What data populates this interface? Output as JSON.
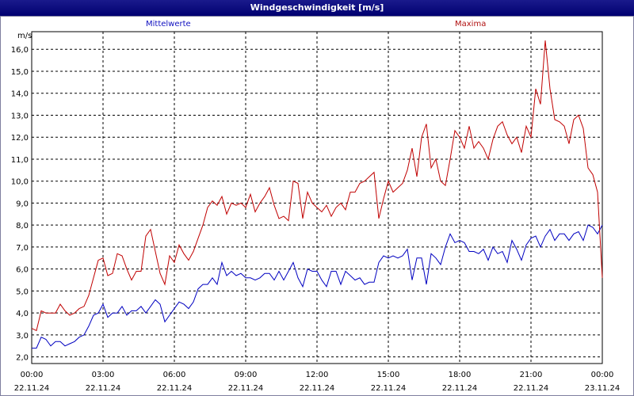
{
  "window": {
    "title": "Windgeschwindigkeit [m/s]"
  },
  "chart_data": {
    "type": "line",
    "title": "Windgeschwindigkeit [m/s]",
    "ylabel": "m/s",
    "ylim": [
      1.7,
      16.8
    ],
    "y_ticks": [
      "2,0",
      "3,0",
      "4,0",
      "5,0",
      "6,0",
      "7,0",
      "8,0",
      "9,0",
      "10,0",
      "11,0",
      "12,0",
      "13,0",
      "14,0",
      "15,0",
      "16,0"
    ],
    "xlim_hours": [
      0,
      24
    ],
    "x_ticks": [
      {
        "time": "00:00",
        "date": "22.11.24",
        "hour": 0
      },
      {
        "time": "03:00",
        "date": "22.11.24",
        "hour": 3
      },
      {
        "time": "06:00",
        "date": "22.11.24",
        "hour": 6
      },
      {
        "time": "09:00",
        "date": "22.11.24",
        "hour": 9
      },
      {
        "time": "12:00",
        "date": "22.11.24",
        "hour": 12
      },
      {
        "time": "15:00",
        "date": "22.11.24",
        "hour": 15
      },
      {
        "time": "18:00",
        "date": "22.11.24",
        "hour": 18
      },
      {
        "time": "21:00",
        "date": "22.11.24",
        "hour": 21
      },
      {
        "time": "00:00",
        "date": "23.11.24",
        "hour": 24
      }
    ],
    "grid": true,
    "series": [
      {
        "name": "Mittelwerte",
        "color": "#0000c0",
        "points": [
          [
            0,
            2.4
          ],
          [
            0.2,
            2.4
          ],
          [
            0.4,
            2.9
          ],
          [
            0.6,
            2.8
          ],
          [
            0.8,
            2.5
          ],
          [
            1.0,
            2.7
          ],
          [
            1.2,
            2.7
          ],
          [
            1.4,
            2.5
          ],
          [
            1.6,
            2.6
          ],
          [
            1.8,
            2.7
          ],
          [
            2.0,
            2.9
          ],
          [
            2.2,
            3.0
          ],
          [
            2.4,
            3.4
          ],
          [
            2.6,
            3.9
          ],
          [
            2.8,
            4.0
          ],
          [
            3.0,
            4.4
          ],
          [
            3.2,
            3.8
          ],
          [
            3.4,
            4.0
          ],
          [
            3.6,
            4.0
          ],
          [
            3.8,
            4.3
          ],
          [
            4.0,
            3.9
          ],
          [
            4.2,
            4.1
          ],
          [
            4.4,
            4.1
          ],
          [
            4.6,
            4.3
          ],
          [
            4.8,
            4.0
          ],
          [
            5.0,
            4.3
          ],
          [
            5.2,
            4.6
          ],
          [
            5.4,
            4.4
          ],
          [
            5.6,
            3.6
          ],
          [
            5.8,
            3.9
          ],
          [
            6.0,
            4.2
          ],
          [
            6.2,
            4.5
          ],
          [
            6.4,
            4.4
          ],
          [
            6.6,
            4.2
          ],
          [
            6.8,
            4.5
          ],
          [
            7.0,
            5.1
          ],
          [
            7.2,
            5.3
          ],
          [
            7.4,
            5.3
          ],
          [
            7.6,
            5.6
          ],
          [
            7.8,
            5.3
          ],
          [
            8.0,
            6.3
          ],
          [
            8.2,
            5.7
          ],
          [
            8.4,
            5.9
          ],
          [
            8.6,
            5.7
          ],
          [
            8.8,
            5.8
          ],
          [
            9.0,
            5.6
          ],
          [
            9.2,
            5.6
          ],
          [
            9.4,
            5.5
          ],
          [
            9.6,
            5.6
          ],
          [
            9.8,
            5.8
          ],
          [
            10.0,
            5.8
          ],
          [
            10.2,
            5.5
          ],
          [
            10.4,
            5.9
          ],
          [
            10.6,
            5.5
          ],
          [
            10.8,
            5.9
          ],
          [
            11.0,
            6.3
          ],
          [
            11.2,
            5.6
          ],
          [
            11.4,
            5.2
          ],
          [
            11.6,
            6.0
          ],
          [
            11.8,
            5.9
          ],
          [
            12.0,
            5.9
          ],
          [
            12.2,
            5.5
          ],
          [
            12.4,
            5.2
          ],
          [
            12.6,
            5.9
          ],
          [
            12.8,
            5.9
          ],
          [
            13.0,
            5.3
          ],
          [
            13.2,
            5.9
          ],
          [
            13.4,
            5.7
          ],
          [
            13.6,
            5.5
          ],
          [
            13.8,
            5.6
          ],
          [
            14.0,
            5.3
          ],
          [
            14.2,
            5.4
          ],
          [
            14.4,
            5.4
          ],
          [
            14.6,
            6.3
          ],
          [
            14.8,
            6.6
          ],
          [
            15.0,
            6.5
          ],
          [
            15.2,
            6.6
          ],
          [
            15.4,
            6.5
          ],
          [
            15.6,
            6.6
          ],
          [
            15.8,
            6.9
          ],
          [
            16.0,
            5.5
          ],
          [
            16.2,
            6.5
          ],
          [
            16.4,
            6.5
          ],
          [
            16.6,
            5.3
          ],
          [
            16.8,
            6.7
          ],
          [
            17.0,
            6.5
          ],
          [
            17.2,
            6.2
          ],
          [
            17.4,
            7.0
          ],
          [
            17.6,
            7.6
          ],
          [
            17.8,
            7.2
          ],
          [
            18.0,
            7.3
          ],
          [
            18.2,
            7.2
          ],
          [
            18.4,
            6.8
          ],
          [
            18.6,
            6.8
          ],
          [
            18.8,
            6.7
          ],
          [
            19.0,
            6.9
          ],
          [
            19.2,
            6.4
          ],
          [
            19.4,
            7.0
          ],
          [
            19.6,
            6.7
          ],
          [
            19.8,
            6.8
          ],
          [
            20.0,
            6.3
          ],
          [
            20.2,
            7.3
          ],
          [
            20.4,
            6.9
          ],
          [
            20.6,
            6.4
          ],
          [
            20.8,
            7.1
          ],
          [
            21.0,
            7.4
          ],
          [
            21.2,
            7.5
          ],
          [
            21.4,
            7.0
          ],
          [
            21.6,
            7.5
          ],
          [
            21.8,
            7.8
          ],
          [
            22.0,
            7.3
          ],
          [
            22.2,
            7.6
          ],
          [
            22.4,
            7.6
          ],
          [
            22.6,
            7.3
          ],
          [
            22.8,
            7.6
          ],
          [
            23.0,
            7.7
          ],
          [
            23.2,
            7.3
          ],
          [
            23.4,
            8.0
          ],
          [
            23.6,
            7.9
          ],
          [
            23.8,
            7.6
          ],
          [
            24.0,
            8.0
          ]
        ]
      },
      {
        "name": "Maxima",
        "color": "#c00000",
        "points": [
          [
            0,
            3.3
          ],
          [
            0.2,
            3.2
          ],
          [
            0.4,
            4.1
          ],
          [
            0.6,
            4.0
          ],
          [
            0.8,
            4.0
          ],
          [
            1.0,
            4.0
          ],
          [
            1.2,
            4.4
          ],
          [
            1.4,
            4.1
          ],
          [
            1.6,
            3.9
          ],
          [
            1.8,
            4.0
          ],
          [
            2.0,
            4.2
          ],
          [
            2.2,
            4.3
          ],
          [
            2.4,
            4.8
          ],
          [
            2.6,
            5.6
          ],
          [
            2.8,
            6.4
          ],
          [
            3.0,
            6.5
          ],
          [
            3.2,
            5.7
          ],
          [
            3.4,
            5.8
          ],
          [
            3.6,
            6.7
          ],
          [
            3.8,
            6.6
          ],
          [
            4.0,
            6.0
          ],
          [
            4.2,
            5.5
          ],
          [
            4.4,
            5.9
          ],
          [
            4.6,
            5.9
          ],
          [
            4.8,
            7.5
          ],
          [
            5.0,
            7.8
          ],
          [
            5.2,
            6.8
          ],
          [
            5.4,
            5.8
          ],
          [
            5.6,
            5.3
          ],
          [
            5.8,
            6.6
          ],
          [
            6.0,
            6.3
          ],
          [
            6.2,
            7.1
          ],
          [
            6.4,
            6.7
          ],
          [
            6.6,
            6.4
          ],
          [
            6.8,
            6.8
          ],
          [
            7.0,
            7.4
          ],
          [
            7.2,
            8.0
          ],
          [
            7.4,
            8.8
          ],
          [
            7.6,
            9.1
          ],
          [
            7.8,
            8.9
          ],
          [
            8.0,
            9.3
          ],
          [
            8.2,
            8.5
          ],
          [
            8.4,
            9.0
          ],
          [
            8.6,
            8.9
          ],
          [
            8.8,
            9.0
          ],
          [
            9.0,
            8.8
          ],
          [
            9.2,
            9.4
          ],
          [
            9.4,
            8.6
          ],
          [
            9.6,
            9.0
          ],
          [
            9.8,
            9.3
          ],
          [
            10.0,
            9.7
          ],
          [
            10.2,
            8.9
          ],
          [
            10.4,
            8.3
          ],
          [
            10.6,
            8.4
          ],
          [
            10.8,
            8.2
          ],
          [
            11.0,
            10.0
          ],
          [
            11.2,
            9.9
          ],
          [
            11.4,
            8.3
          ],
          [
            11.6,
            9.5
          ],
          [
            11.8,
            9.0
          ],
          [
            12.0,
            8.8
          ],
          [
            12.2,
            8.6
          ],
          [
            12.4,
            8.9
          ],
          [
            12.6,
            8.4
          ],
          [
            12.8,
            8.8
          ],
          [
            13.0,
            9.0
          ],
          [
            13.2,
            8.7
          ],
          [
            13.4,
            9.5
          ],
          [
            13.6,
            9.5
          ],
          [
            13.8,
            9.9
          ],
          [
            14.0,
            10.0
          ],
          [
            14.2,
            10.2
          ],
          [
            14.4,
            10.4
          ],
          [
            14.6,
            8.3
          ],
          [
            14.8,
            9.2
          ],
          [
            15.0,
            10.0
          ],
          [
            15.2,
            9.5
          ],
          [
            15.4,
            9.7
          ],
          [
            15.6,
            9.9
          ],
          [
            15.8,
            10.5
          ],
          [
            16.0,
            11.5
          ],
          [
            16.2,
            10.2
          ],
          [
            16.4,
            12.0
          ],
          [
            16.6,
            12.6
          ],
          [
            16.8,
            10.6
          ],
          [
            17.0,
            11.0
          ],
          [
            17.2,
            10.0
          ],
          [
            17.4,
            9.8
          ],
          [
            17.6,
            11.0
          ],
          [
            17.8,
            12.3
          ],
          [
            18.0,
            12.0
          ],
          [
            18.2,
            11.5
          ],
          [
            18.4,
            12.5
          ],
          [
            18.6,
            11.5
          ],
          [
            18.8,
            11.8
          ],
          [
            19.0,
            11.5
          ],
          [
            19.2,
            11.0
          ],
          [
            19.4,
            11.9
          ],
          [
            19.6,
            12.5
          ],
          [
            19.8,
            12.7
          ],
          [
            20.0,
            12.1
          ],
          [
            20.2,
            11.7
          ],
          [
            20.4,
            12.0
          ],
          [
            20.6,
            11.3
          ],
          [
            20.8,
            12.5
          ],
          [
            21.0,
            12.0
          ],
          [
            21.2,
            14.2
          ],
          [
            21.4,
            13.5
          ],
          [
            21.6,
            16.4
          ],
          [
            21.8,
            14.2
          ],
          [
            22.0,
            12.8
          ],
          [
            22.2,
            12.7
          ],
          [
            22.4,
            12.5
          ],
          [
            22.6,
            11.7
          ],
          [
            22.8,
            12.8
          ],
          [
            23.0,
            13.0
          ],
          [
            23.2,
            12.4
          ],
          [
            23.4,
            10.6
          ],
          [
            23.6,
            10.3
          ],
          [
            23.8,
            9.5
          ],
          [
            24.0,
            5.6
          ]
        ]
      }
    ]
  }
}
